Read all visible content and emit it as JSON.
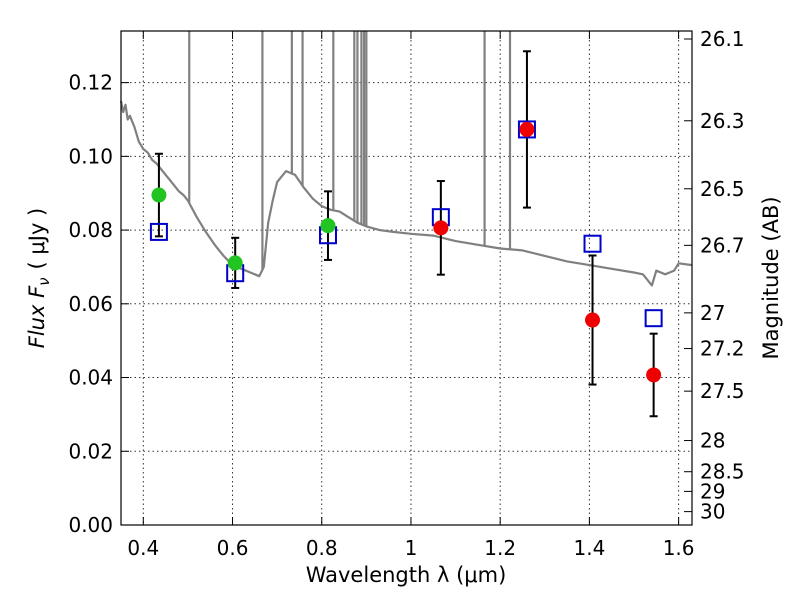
{
  "chart_data": {
    "type": "scatter",
    "xlabel": "Wavelength  λ (μm)",
    "ylabel": "Flux  F",
    "ylabel_sub": "ν",
    "ylabel_unit": "( μJy )",
    "y2label": "Magnitude (AB)",
    "xlim": [
      0.35,
      1.63
    ],
    "ylim": [
      0.0,
      0.134
    ],
    "grid": true,
    "x_ticks": [
      0.4,
      0.6,
      0.8,
      1.0,
      1.2,
      1.4,
      1.6
    ],
    "x_tick_labels": [
      "0.4",
      "0.6",
      "0.8",
      "1",
      "1.2",
      "1.4",
      "1.6"
    ],
    "y_ticks": [
      0.0,
      0.02,
      0.04,
      0.06,
      0.08,
      0.1,
      0.12
    ],
    "y_tick_labels": [
      "0.00",
      "0.02",
      "0.04",
      "0.06",
      "0.08",
      "0.10",
      "0.12"
    ],
    "magnitude_ticks": [
      {
        "label": "26.1",
        "mag": 26.1
      },
      {
        "label": "26.3",
        "mag": 26.3
      },
      {
        "label": "26.5",
        "mag": 26.5
      },
      {
        "label": "26.7",
        "mag": 26.7
      },
      {
        "label": "27",
        "mag": 27.0
      },
      {
        "label": "27.2",
        "mag": 27.2
      },
      {
        "label": "27.5",
        "mag": 27.5
      },
      {
        "label": "28",
        "mag": 28.0
      },
      {
        "label": "28.5",
        "mag": 28.5
      },
      {
        "label": "29",
        "mag": 29.0
      },
      {
        "label": "30",
        "mag": 30.0
      }
    ],
    "colors": {
      "model": "#808080",
      "green": "#22c422",
      "red": "#ee0000",
      "squares": "#0000cc",
      "errorbar": "#000000"
    },
    "series": [
      {
        "marker": "square",
        "color": "#0000cc",
        "points": [
          {
            "x": 0.435,
            "y": 0.0795
          },
          {
            "x": 0.606,
            "y": 0.0683
          },
          {
            "x": 0.814,
            "y": 0.0786
          },
          {
            "x": 1.067,
            "y": 0.0835
          },
          {
            "x": 1.26,
            "y": 0.1073
          },
          {
            "x": 1.407,
            "y": 0.0763
          },
          {
            "x": 1.544,
            "y": 0.0561
          }
        ]
      },
      {
        "marker": "circle",
        "color": "#22c422",
        "points": [
          {
            "x": 0.435,
            "y": 0.0895,
            "err": 0.0112
          },
          {
            "x": 0.606,
            "y": 0.0711,
            "err": 0.0068
          },
          {
            "x": 0.814,
            "y": 0.0812,
            "err": 0.0093
          }
        ]
      },
      {
        "marker": "circle",
        "color": "#ee0000",
        "points": [
          {
            "x": 1.067,
            "y": 0.0806,
            "err": 0.0127
          },
          {
            "x": 1.26,
            "y": 0.1073,
            "err": 0.0212
          },
          {
            "x": 1.407,
            "y": 0.0556,
            "err": 0.0175
          },
          {
            "x": 1.544,
            "y": 0.0407,
            "err": 0.0112
          }
        ]
      },
      {
        "type": "line",
        "color": "#808080",
        "points": [
          [
            0.35,
            0.115
          ],
          [
            0.355,
            0.112
          ],
          [
            0.36,
            0.114
          ],
          [
            0.365,
            0.11
          ],
          [
            0.37,
            0.111
          ],
          [
            0.38,
            0.108
          ],
          [
            0.39,
            0.104
          ],
          [
            0.4,
            0.102
          ],
          [
            0.41,
            0.101
          ],
          [
            0.42,
            0.099
          ],
          [
            0.43,
            0.098
          ],
          [
            0.44,
            0.0965
          ],
          [
            0.45,
            0.095
          ],
          [
            0.46,
            0.0935
          ],
          [
            0.47,
            0.092
          ],
          [
            0.48,
            0.0905
          ],
          [
            0.49,
            0.0895
          ],
          [
            0.5,
            0.088
          ],
          [
            0.52,
            0.0835
          ],
          [
            0.54,
            0.0795
          ],
          [
            0.56,
            0.076
          ],
          [
            0.58,
            0.073
          ],
          [
            0.6,
            0.0705
          ],
          [
            0.62,
            0.0695
          ],
          [
            0.64,
            0.0685
          ],
          [
            0.66,
            0.0675
          ],
          [
            0.67,
            0.07
          ],
          [
            0.68,
            0.082
          ],
          [
            0.69,
            0.088
          ],
          [
            0.7,
            0.093
          ],
          [
            0.72,
            0.096
          ],
          [
            0.74,
            0.095
          ],
          [
            0.76,
            0.0915
          ],
          [
            0.78,
            0.0885
          ],
          [
            0.8,
            0.0865
          ],
          [
            0.82,
            0.0855
          ],
          [
            0.84,
            0.085
          ],
          [
            0.86,
            0.0835
          ],
          [
            0.88,
            0.082
          ],
          [
            0.9,
            0.081
          ],
          [
            0.93,
            0.08
          ],
          [
            0.96,
            0.0795
          ],
          [
            1.0,
            0.079
          ],
          [
            1.05,
            0.0785
          ],
          [
            1.1,
            0.077
          ],
          [
            1.15,
            0.076
          ],
          [
            1.2,
            0.075
          ],
          [
            1.25,
            0.0745
          ],
          [
            1.3,
            0.073
          ],
          [
            1.35,
            0.0715
          ],
          [
            1.4,
            0.0705
          ],
          [
            1.45,
            0.0695
          ],
          [
            1.5,
            0.0685
          ],
          [
            1.52,
            0.068
          ],
          [
            1.54,
            0.065
          ],
          [
            1.55,
            0.069
          ],
          [
            1.57,
            0.068
          ],
          [
            1.59,
            0.069
          ],
          [
            1.6,
            0.071
          ],
          [
            1.63,
            0.0705
          ]
        ]
      }
    ],
    "model_spikes_x": [
      0.503,
      0.667,
      0.733,
      0.757,
      0.826,
      0.873,
      0.88,
      0.889,
      0.895,
      0.9,
      1.165,
      1.222
    ]
  }
}
